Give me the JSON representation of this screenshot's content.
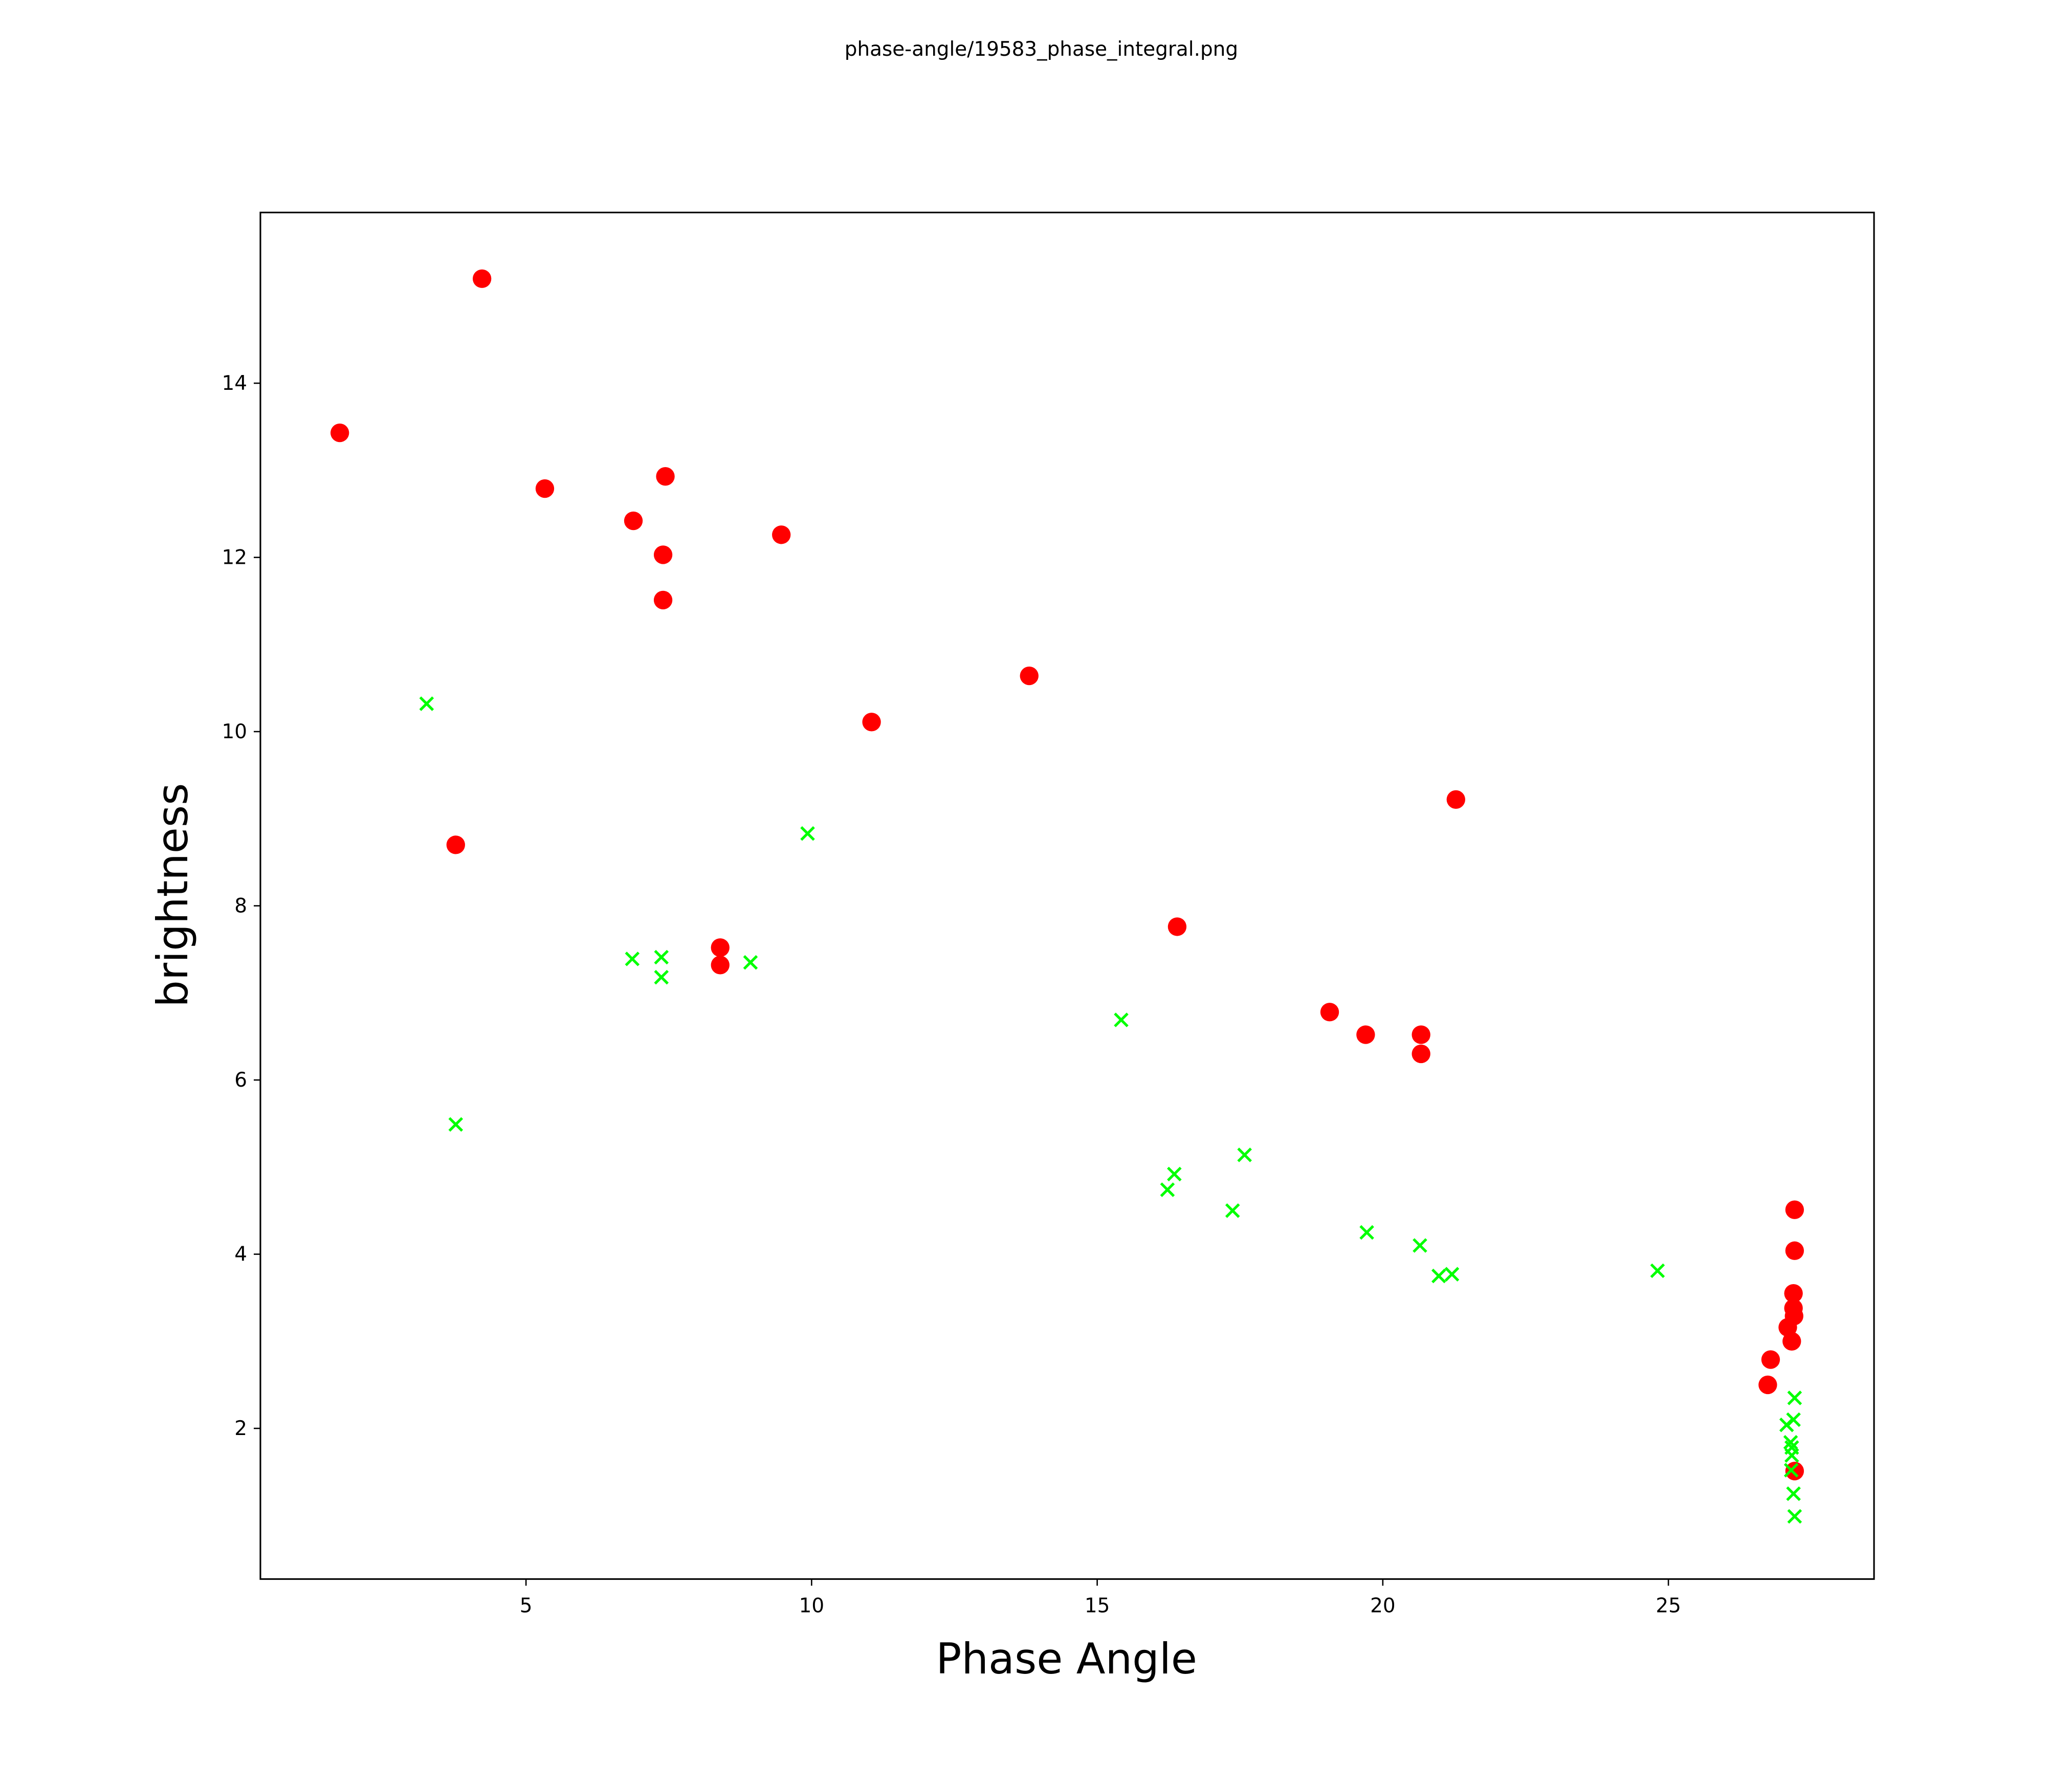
{
  "chart_data": {
    "type": "scatter",
    "title": "phase-angle/19583_phase_integral.png",
    "xlabel": "Phase Angle",
    "ylabel": "brightness",
    "xlim": [
      0.35,
      28.6
    ],
    "ylim": [
      0.27,
      15.96
    ],
    "xticks": [
      5,
      10,
      15,
      20,
      25
    ],
    "yticks": [
      2,
      4,
      6,
      8,
      10,
      12,
      14
    ],
    "grid": false,
    "series": [
      {
        "name": "red-circles",
        "marker": "circle",
        "color": "#ff0000",
        "points": [
          [
            1.74,
            13.43
          ],
          [
            4.23,
            15.2
          ],
          [
            5.33,
            12.79
          ],
          [
            6.88,
            12.42
          ],
          [
            7.44,
            12.93
          ],
          [
            7.4,
            12.03
          ],
          [
            7.4,
            11.51
          ],
          [
            9.47,
            12.26
          ],
          [
            13.81,
            10.64
          ],
          [
            11.05,
            10.11
          ],
          [
            3.77,
            8.7
          ],
          [
            8.4,
            7.52
          ],
          [
            8.4,
            7.32
          ],
          [
            21.28,
            9.22
          ],
          [
            16.4,
            7.76
          ],
          [
            19.07,
            6.78
          ],
          [
            19.7,
            6.52
          ],
          [
            20.67,
            6.52
          ],
          [
            20.67,
            6.3
          ],
          [
            27.21,
            4.51
          ],
          [
            27.21,
            4.04
          ],
          [
            27.19,
            3.55
          ],
          [
            27.19,
            3.38
          ],
          [
            27.2,
            3.29
          ],
          [
            27.09,
            3.16
          ],
          [
            27.16,
            3.0
          ],
          [
            26.79,
            2.79
          ],
          [
            26.74,
            2.5
          ],
          [
            27.21,
            1.51
          ]
        ]
      },
      {
        "name": "green-crosses",
        "marker": "x",
        "color": "#00ff00",
        "points": [
          [
            3.26,
            10.32
          ],
          [
            3.77,
            5.49
          ],
          [
            9.93,
            8.83
          ],
          [
            6.86,
            7.39
          ],
          [
            7.37,
            7.41
          ],
          [
            7.37,
            7.18
          ],
          [
            8.93,
            7.35
          ],
          [
            15.42,
            6.69
          ],
          [
            16.35,
            4.92
          ],
          [
            16.23,
            4.74
          ],
          [
            17.58,
            5.14
          ],
          [
            17.37,
            4.5
          ],
          [
            19.72,
            4.25
          ],
          [
            20.65,
            4.1
          ],
          [
            20.98,
            3.75
          ],
          [
            21.21,
            3.77
          ],
          [
            24.81,
            3.81
          ],
          [
            27.21,
            2.35
          ],
          [
            27.07,
            2.04
          ],
          [
            27.19,
            2.1
          ],
          [
            27.14,
            1.84
          ],
          [
            27.16,
            1.78
          ],
          [
            27.16,
            1.69
          ],
          [
            27.15,
            1.52
          ],
          [
            27.19,
            1.25
          ],
          [
            27.21,
            0.99
          ]
        ]
      }
    ]
  }
}
